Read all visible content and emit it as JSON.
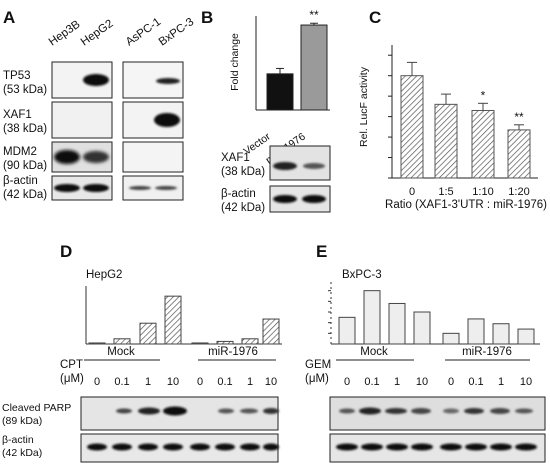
{
  "panels": {
    "A": {
      "letter": "A",
      "cell_lines": [
        "Hep3B",
        "HepG2",
        "AsPC-1",
        "BxPC-3"
      ],
      "blots": [
        {
          "protein": "TP53",
          "size": "(53 kDa)"
        },
        {
          "protein": "XAF1",
          "size": "(38 kDa)"
        },
        {
          "protein": "MDM2",
          "size": "(90 kDa)"
        },
        {
          "protein": "β-actin",
          "size": "(42 kDa)"
        }
      ]
    },
    "B": {
      "letter": "B",
      "ylabel": "Fold change",
      "significance": "**",
      "blots": [
        {
          "protein": "XAF1",
          "size": "(38 kDa)"
        },
        {
          "protein": "β-actin",
          "size": "(42 kDa)"
        }
      ]
    },
    "C": {
      "letter": "C",
      "ylabel": "Rel. LucF activity",
      "xlabel": "Ratio (XAF1-3'UTR : miR-1976)",
      "significance": [
        "",
        "",
        "*",
        "**"
      ]
    },
    "D": {
      "letter": "D",
      "cell_line": "HepG2",
      "treatment": "CPT",
      "unit": "(μM)",
      "groups": [
        "Mock",
        "miR-1976"
      ],
      "doses": [
        "0",
        "0.1",
        "1",
        "10",
        "0",
        "0.1",
        "1",
        "10"
      ],
      "blots": [
        {
          "protein": "Cleaved PARP",
          "size": "(89 kDa)"
        },
        {
          "protein": "β-actin",
          "size": "(42 kDa)"
        }
      ]
    },
    "E": {
      "letter": "E",
      "cell_line": "BxPC-3",
      "treatment": "GEM",
      "unit": "(μM)",
      "groups": [
        "Mock",
        "miR-1976"
      ],
      "doses": [
        "0",
        "0.1",
        "1",
        "10",
        "0",
        "0.1",
        "1",
        "10"
      ]
    }
  },
  "chart_data": [
    {
      "panel": "B",
      "type": "bar",
      "categories": [
        "Vector",
        "miR-1976"
      ],
      "values": [
        1.0,
        2.35
      ],
      "errors": [
        0.15,
        0.05
      ],
      "ylim": [
        0,
        2.6
      ],
      "ylabel": "Fold change",
      "colors": [
        "#111111",
        "#9a9a9a"
      ]
    },
    {
      "panel": "C",
      "type": "bar",
      "categories": [
        "0",
        "1:5",
        "1:10",
        "1:20"
      ],
      "values": [
        1.0,
        0.72,
        0.66,
        0.47
      ],
      "errors": [
        0.13,
        0.1,
        0.07,
        0.05
      ],
      "ylim": [
        0,
        1.3
      ],
      "yticks": [
        0,
        0.2,
        0.4,
        0.6,
        0.8,
        1.0,
        1.2
      ],
      "ylabel": "Rel. LucF activity",
      "xlabel": "Ratio (XAF1-3'UTR : miR-1976)"
    },
    {
      "panel": "D",
      "type": "bar",
      "categories": [
        "0",
        "0.1",
        "1",
        "10",
        "0",
        "0.1",
        "1",
        "10"
      ],
      "values": [
        0.02,
        0.1,
        0.4,
        0.92,
        0.02,
        0.05,
        0.1,
        0.48
      ],
      "ylim": [
        0,
        1.0
      ]
    },
    {
      "panel": "E",
      "type": "bar",
      "categories": [
        "0",
        "0.1",
        "1",
        "10",
        "0",
        "0.1",
        "1",
        "10"
      ],
      "values": [
        0.5,
        1.0,
        0.76,
        0.6,
        0.2,
        0.47,
        0.38,
        0.28
      ],
      "ylim": [
        0,
        1.05
      ]
    }
  ]
}
